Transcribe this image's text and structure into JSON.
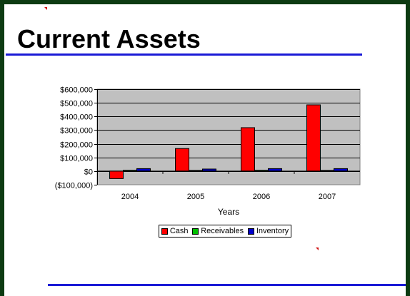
{
  "slide": {
    "title": "Current Assets"
  },
  "colors": {
    "background": "#0d3b12",
    "rule": "#1a1ad6",
    "plot_area": "#c0c0c0"
  },
  "chart_data": {
    "type": "bar",
    "title": "",
    "xlabel": "Years",
    "ylabel": "",
    "categories": [
      "2004",
      "2005",
      "2006",
      "2007"
    ],
    "ylim": [
      -100000,
      600000
    ],
    "y_ticks": [
      600000,
      500000,
      400000,
      300000,
      200000,
      100000,
      0,
      -100000
    ],
    "y_tick_labels": [
      "$600,000",
      "$500,000",
      "$400,000",
      "$300,000",
      "$200,000",
      "$100,000",
      "$0",
      "($100,000)"
    ],
    "grid": true,
    "legend_position": "bottom",
    "series": [
      {
        "name": "Cash",
        "color": "#ff0000",
        "values": [
          -55000,
          165000,
          318000,
          485000
        ]
      },
      {
        "name": "Receivables",
        "color": "#00c000",
        "values": [
          6000,
          5000,
          6000,
          5000
        ]
      },
      {
        "name": "Inventory",
        "color": "#0000cc",
        "values": [
          18000,
          15000,
          18000,
          18000
        ]
      }
    ]
  }
}
